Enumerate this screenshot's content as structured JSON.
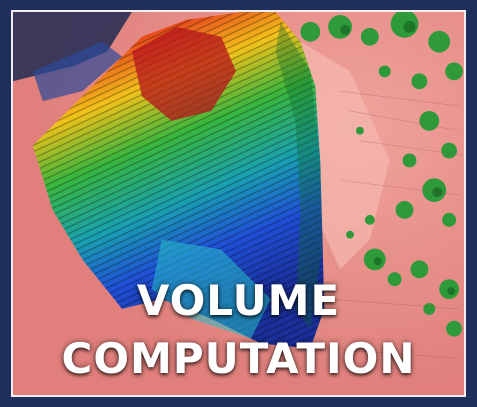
{
  "overlay": {
    "line1": "VOLUME",
    "line2": "COMPUTATION"
  },
  "colors": {
    "background": "#1d2f5a",
    "frame_border": "#f3eef0",
    "terrain": "#e88a86",
    "vegetation": "#2e9a3a",
    "heat_high": "#c0181e",
    "heat_mid": "#2fb040",
    "heat_low": "#1f4fd6"
  }
}
